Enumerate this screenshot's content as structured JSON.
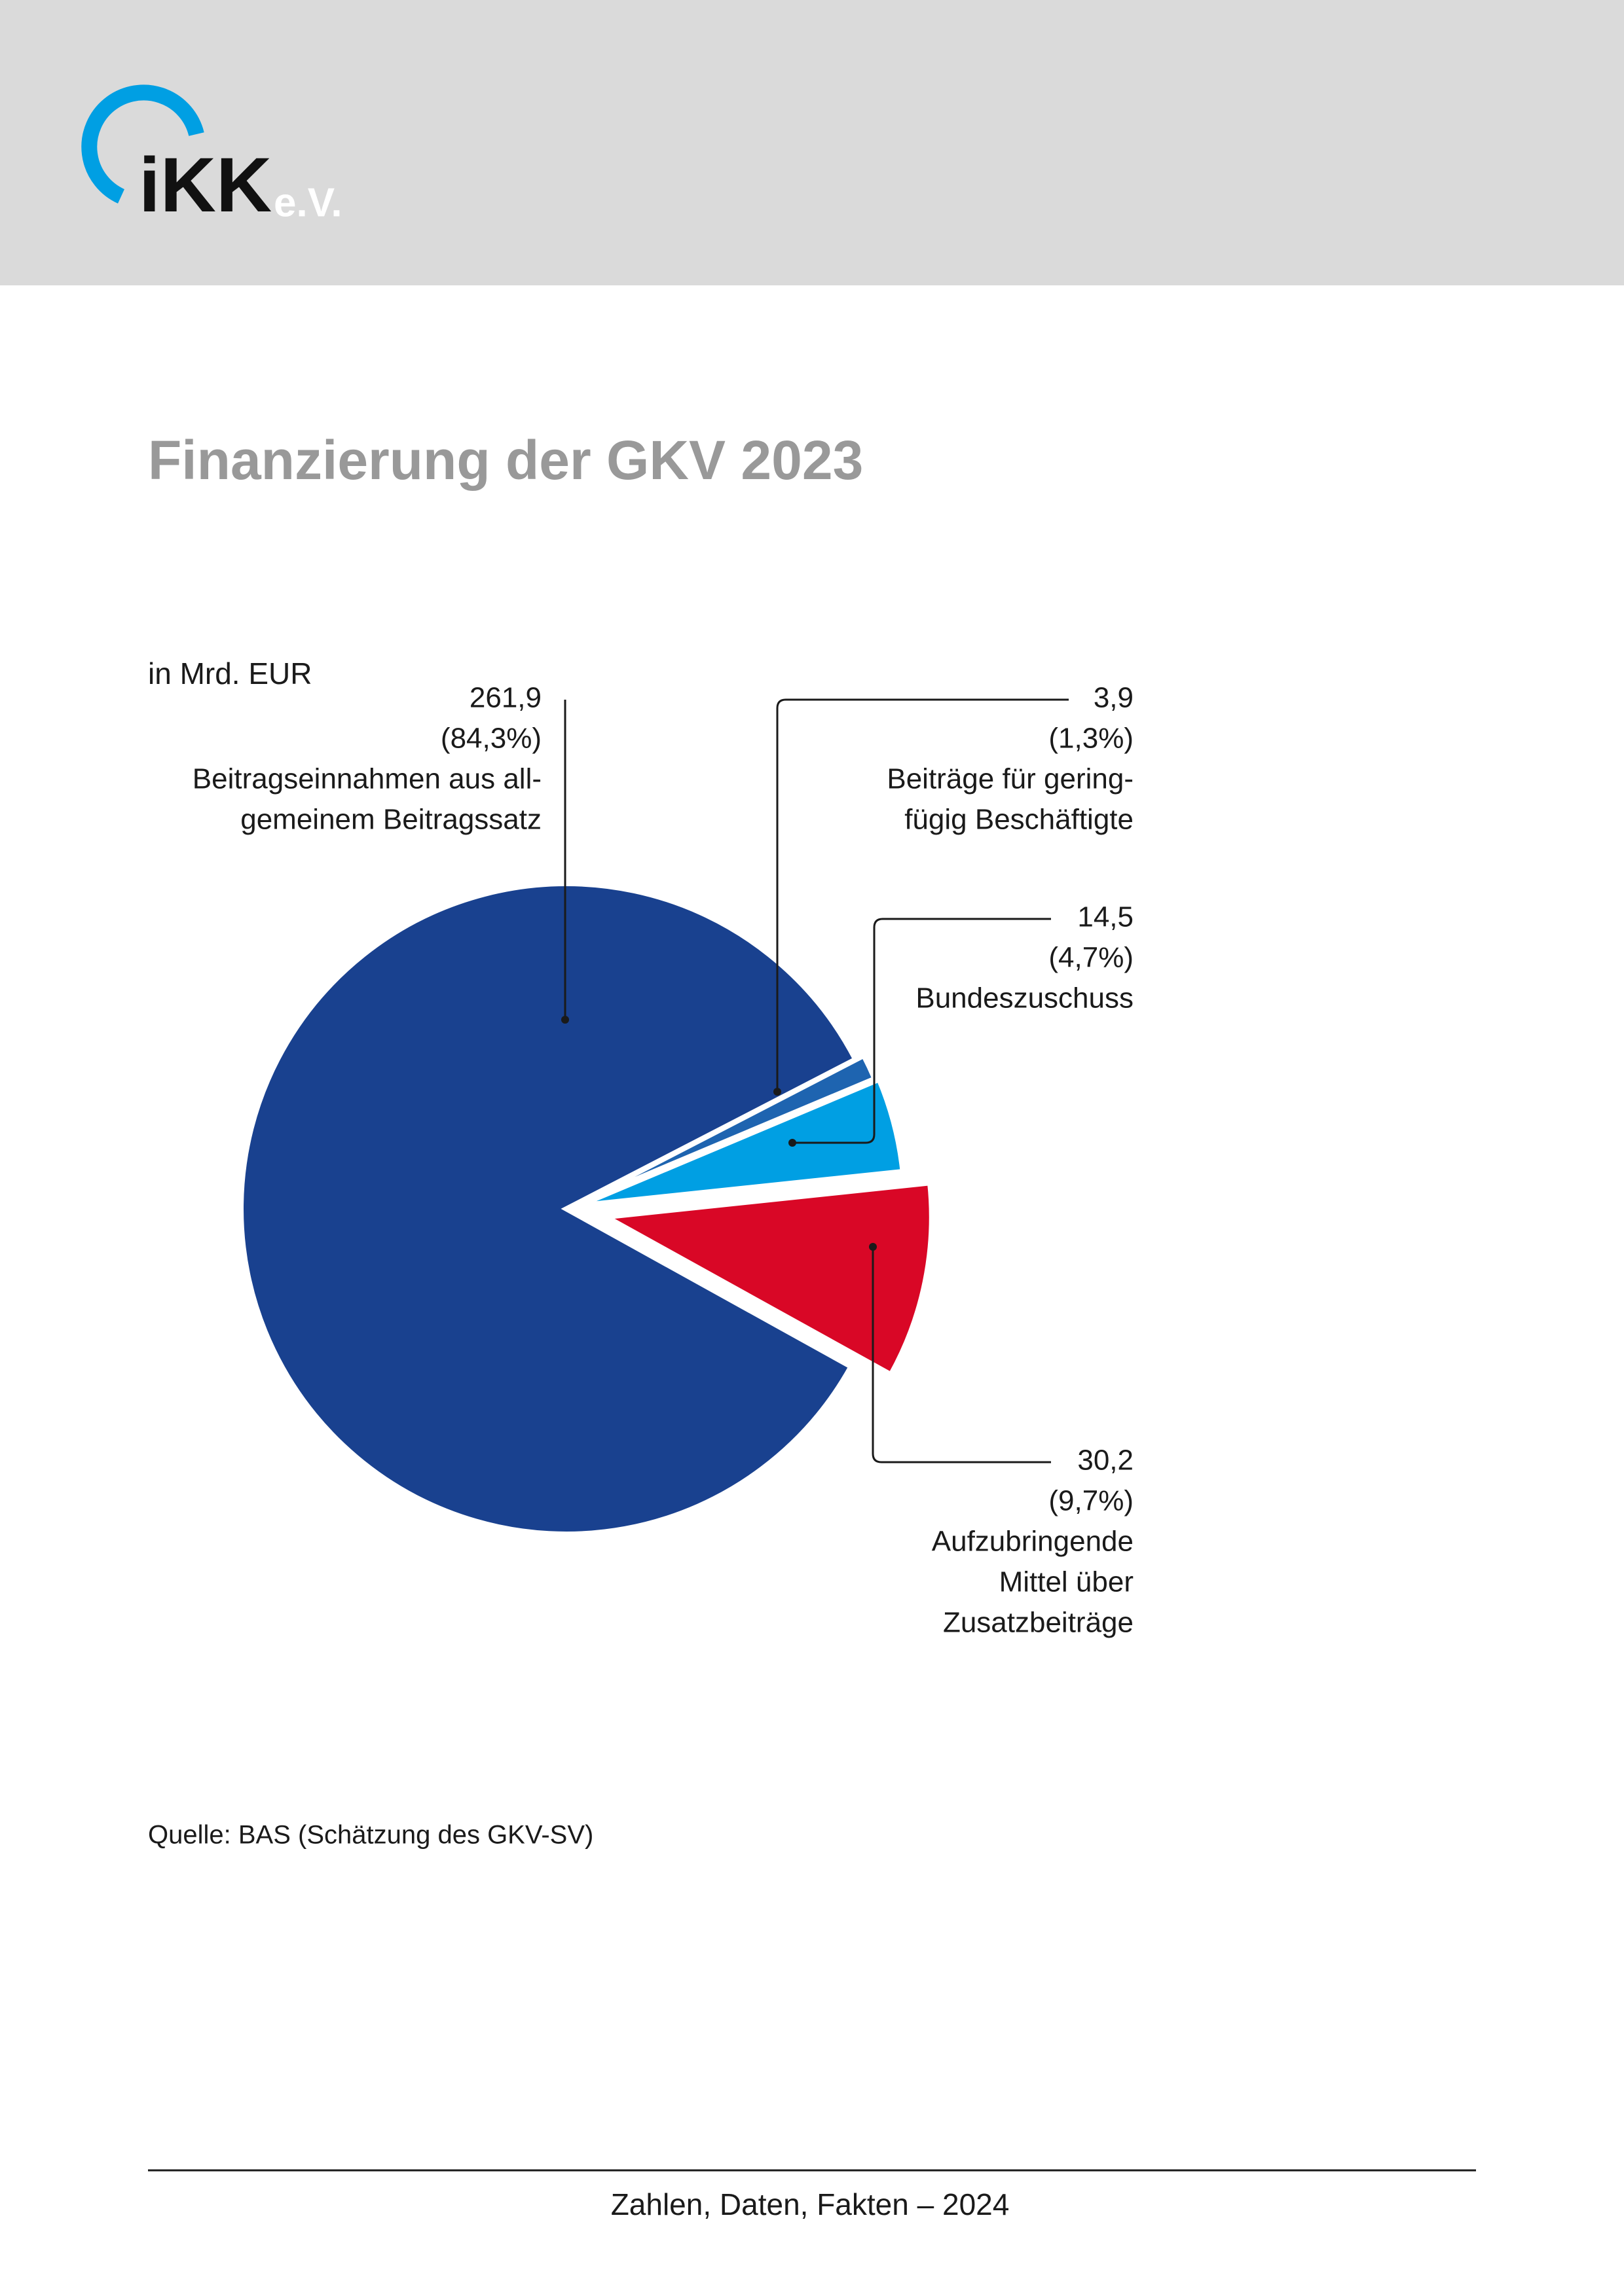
{
  "header": {
    "logo": "iKK",
    "logo_suffix": "e.V."
  },
  "chart_data": {
    "type": "pie",
    "title": "Finanzierung der GKV 2023",
    "unit": "in Mrd. EUR",
    "categories": [
      [
        "Beitragseinnahmen aus all-",
        "gemeinem Beitragssatz"
      ],
      [
        "Beiträge für gering-",
        "fügig Beschäftigte"
      ],
      [
        "Bundeszuschuss"
      ],
      [
        "Aufzubringende",
        "Mittel über",
        "Zusatzbeiträge"
      ]
    ],
    "values": [
      261.9,
      3.9,
      14.5,
      30.2
    ],
    "value_labels": [
      "261,9",
      "3,9",
      "14,5",
      "30,2"
    ],
    "share_labels": [
      "(84,3%)",
      "(1,3%)",
      "(4,7%)",
      "(9,7%)"
    ],
    "colors": [
      "#19418f",
      "#1e64b0",
      "#009fe3",
      "#d90726"
    ],
    "source": "Quelle: BAS (Schätzung des GKV-SV)"
  },
  "footer": {
    "text": "Zahlen, Daten, Fakten – 2024"
  }
}
